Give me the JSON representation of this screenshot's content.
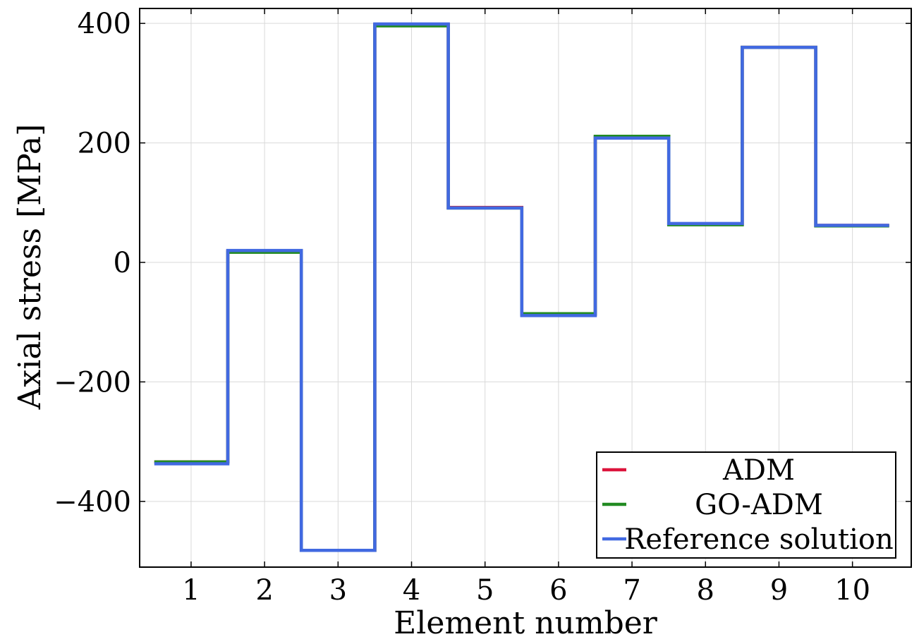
{
  "chart_data": {
    "type": "line",
    "step": "mid",
    "title": "",
    "xlabel": "Element number",
    "ylabel": "Axial stress [MPa]",
    "xlim": [
      0.3,
      10.8
    ],
    "ylim": [
      -510,
      425
    ],
    "x_ticks": [
      1,
      2,
      3,
      4,
      5,
      6,
      7,
      8,
      9,
      10
    ],
    "x_tick_labels": [
      "1",
      "2",
      "3",
      "4",
      "5",
      "6",
      "7",
      "8",
      "9",
      "10"
    ],
    "y_ticks": [
      -400,
      -200,
      0,
      200,
      400
    ],
    "y_tick_labels": [
      "−400",
      "−200",
      "0",
      "200",
      "400"
    ],
    "grid": true,
    "legend_position": "bottom-right",
    "x": [
      1,
      2,
      3,
      4,
      5,
      6,
      7,
      8,
      9,
      10
    ],
    "series": [
      {
        "name": "ADM",
        "color": "#dc143c",
        "values": [
          -334,
          19,
          -482,
          398,
          92,
          -87,
          210,
          64,
          360,
          62
        ]
      },
      {
        "name": "GO-ADM",
        "color": "#228b22",
        "values": [
          -334,
          17,
          -482,
          396,
          91,
          -86,
          211,
          63,
          360,
          61
        ]
      },
      {
        "name": "Reference solution",
        "color": "#4169e1",
        "values": [
          -337,
          20,
          -482,
          399,
          91,
          -89,
          208,
          65,
          360,
          62
        ]
      }
    ]
  }
}
